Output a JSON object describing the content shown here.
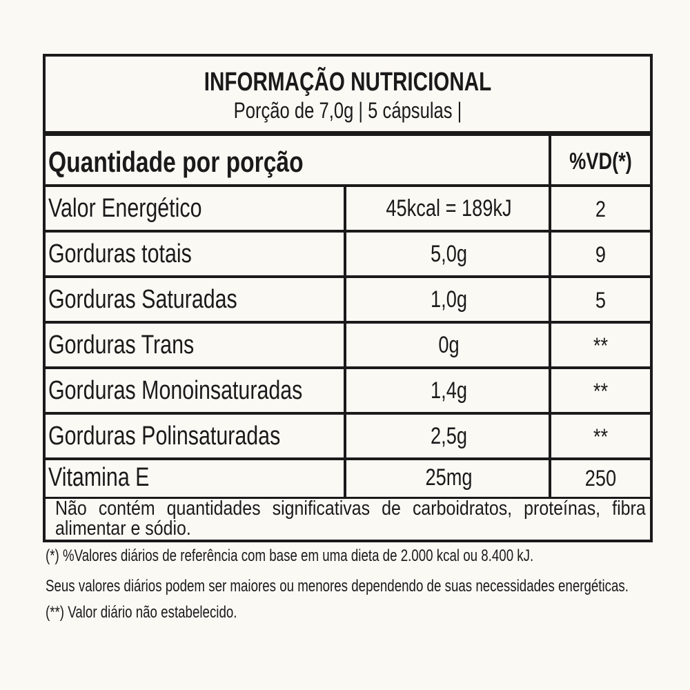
{
  "header": {
    "title": "INFORMAÇÃO NUTRICIONAL",
    "serving": "Porção de 7,0g | 5 cápsulas |"
  },
  "columns": {
    "quantity": "Quantidade por porção",
    "dv": "%VD(*)"
  },
  "rows": [
    {
      "name": "Valor Energético",
      "amount": "45kcal = 189kJ",
      "dv": "2"
    },
    {
      "name": "Gorduras totais",
      "amount": "5,0g",
      "dv": "9"
    },
    {
      "name": "Gorduras Saturadas",
      "amount": "1,0g",
      "dv": "5"
    },
    {
      "name": "Gorduras Trans",
      "amount": "0g",
      "dv": "**"
    },
    {
      "name": "Gorduras Monoinsaturadas",
      "amount": "1,4g",
      "dv": "**"
    },
    {
      "name": "Gorduras Polinsaturadas",
      "amount": "2,5g",
      "dv": "**"
    },
    {
      "name": "Vitamina E",
      "amount": "25mg",
      "dv": "250"
    }
  ],
  "note": "Não contém quantidades significativas de carboidratos, proteínas, fibra alimentar e sódio.",
  "footnotes": [
    "(*) %Valores diários de referência com base em uma dieta de 2.000 kcal ou 8.400 kJ.",
    "Seus valores diários podem ser maiores ou menores dependendo de suas necessidades energéticas.",
    "(**) Valor diário não estabelecido."
  ]
}
